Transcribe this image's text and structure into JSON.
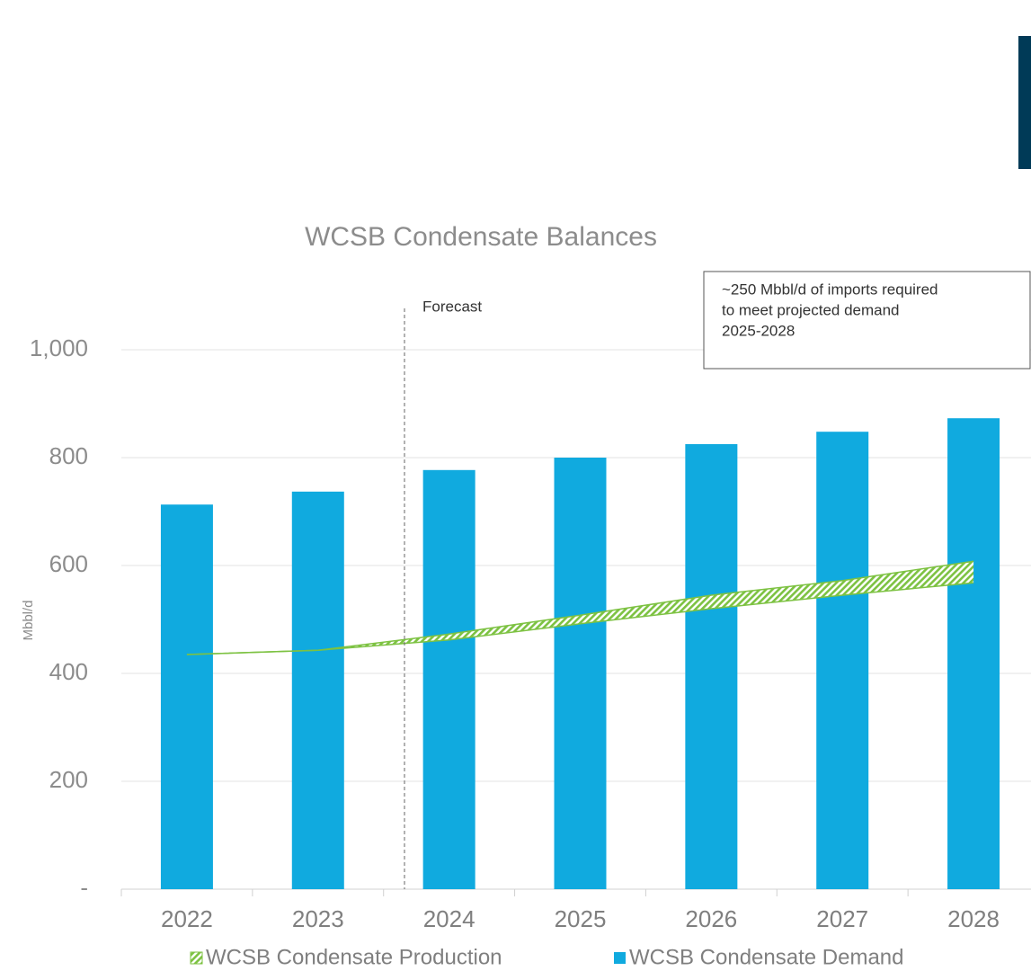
{
  "chart_data": {
    "type": "bar",
    "title": "WCSB Condensate Balances",
    "y_label": "Mbbl/d",
    "categories": [
      "2022",
      "2023",
      "2024",
      "2025",
      "2026",
      "2027",
      "2028"
    ],
    "series": [
      {
        "name": "WCSB Condensate Production",
        "type": "band",
        "color": "#7dc242",
        "values": [
          435,
          443,
          462,
          492,
          520,
          545,
          568
        ],
        "upper": [
          435,
          443,
          473,
          508,
          545,
          572,
          608
        ]
      },
      {
        "name": "WCSB Condensate Demand",
        "type": "bar",
        "color": "#10aadf",
        "values": [
          713,
          737,
          777,
          800,
          825,
          848,
          873
        ]
      }
    ],
    "ylim": [
      0,
      1000
    ],
    "yticks": [
      {
        "value": 0,
        "label": "-"
      },
      200,
      400,
      600,
      800,
      {
        "value": 1000,
        "label": "1,000"
      }
    ],
    "grid": true,
    "annotations": {
      "forecast": "Forecast",
      "box": [
        "~250 Mbbl/d of imports required",
        "to meet projected demand",
        "2025-2028"
      ]
    }
  }
}
